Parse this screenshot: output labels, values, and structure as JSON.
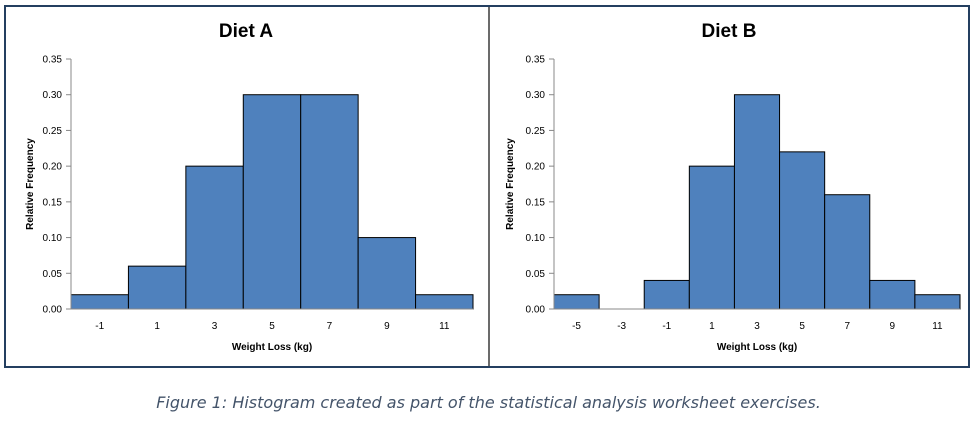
{
  "colors": {
    "bar": "#4f81bd",
    "bar_stroke": "#000000",
    "frame": "#243f60",
    "caption": "#44546a"
  },
  "chart_data": [
    {
      "type": "bar",
      "title": "Diet A",
      "xlabel": "Weight Loss (kg)",
      "ylabel": "Relative Frequency",
      "categories": [
        "-1",
        "1",
        "3",
        "5",
        "7",
        "9",
        "11"
      ],
      "values": [
        0.02,
        0.06,
        0.2,
        0.3,
        0.3,
        0.1,
        0.02
      ],
      "yticks": [
        "0.00",
        "0.05",
        "0.10",
        "0.15",
        "0.20",
        "0.25",
        "0.30",
        "0.35"
      ],
      "ylim": [
        0,
        0.35
      ],
      "grid": false,
      "legend": "none"
    },
    {
      "type": "bar",
      "title": "Diet B",
      "xlabel": "Weight Loss (kg)",
      "ylabel": "Relative Frequency",
      "categories": [
        "-5",
        "-3",
        "-1",
        "1",
        "3",
        "5",
        "7",
        "9",
        "11"
      ],
      "values": [
        0.02,
        0.0,
        0.04,
        0.2,
        0.3,
        0.22,
        0.16,
        0.04,
        0.02
      ],
      "yticks": [
        "0.00",
        "0.05",
        "0.10",
        "0.15",
        "0.20",
        "0.25",
        "0.30",
        "0.35"
      ],
      "ylim": [
        0,
        0.35
      ],
      "grid": false,
      "legend": "none"
    }
  ],
  "caption": "Figure 1: Histogram created as part of the statistical analysis worksheet exercises."
}
